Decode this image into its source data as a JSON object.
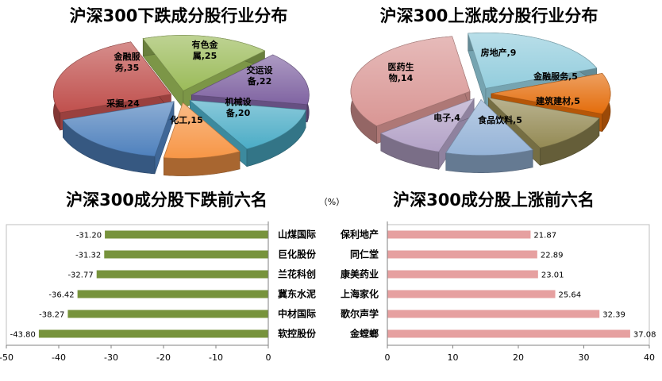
{
  "chart_data": [
    {
      "type": "pie",
      "title": "沪深300下跌成分股行业分布",
      "slices": [
        {
          "label": "有色金属",
          "value": 25,
          "color": "#9BBB59"
        },
        {
          "label": "交运设备",
          "value": 22,
          "color": "#8064A2"
        },
        {
          "label": "机械设备",
          "value": 20,
          "color": "#4BACC6"
        },
        {
          "label": "化工",
          "value": 15,
          "color": "#F79646"
        },
        {
          "label": "采掘",
          "value": 24,
          "color": "#4F81BD"
        },
        {
          "label": "金融服务",
          "value": 35,
          "color": "#C0504D"
        }
      ]
    },
    {
      "type": "pie",
      "title": "沪深300上涨成分股行业分布",
      "slices": [
        {
          "label": "房地产",
          "value": 9,
          "color": "#93CDDD"
        },
        {
          "label": "金融服务",
          "value": 5,
          "color": "#E46C0A"
        },
        {
          "label": "建筑建材",
          "value": 5,
          "color": "#948A54"
        },
        {
          "label": "食品饮料",
          "value": 5,
          "color": "#95B3D7"
        },
        {
          "label": "电子",
          "value": 4,
          "color": "#B3A2C7"
        },
        {
          "label": "医药生物",
          "value": 14,
          "color": "#D99694"
        }
      ]
    },
    {
      "type": "bar",
      "title": "沪深300成分股下跌前六名",
      "unit": "（%）",
      "categories": [
        "山煤国际",
        "巨化股份",
        "兰花科创",
        "冀东水泥",
        "中材国际",
        "软控股份"
      ],
      "values": [
        -31.2,
        -31.32,
        -32.77,
        -36.42,
        -38.27,
        -43.8
      ],
      "value_labels": [
        "-31.20",
        "-31.32",
        "-32.77",
        "-36.42",
        "-38.27",
        "-43.80"
      ],
      "color": "#77933C",
      "xlim": [
        -50,
        0
      ],
      "ticks": [
        -50,
        -40,
        -30,
        -20,
        -10,
        0
      ]
    },
    {
      "type": "bar",
      "title": "沪深300成分股上涨前六名",
      "categories": [
        "保利地产",
        "同仁堂",
        "康美药业",
        "上海家化",
        "歌尔声学",
        "金螳螂"
      ],
      "values": [
        21.87,
        22.89,
        23.01,
        25.64,
        32.39,
        37.08
      ],
      "value_labels": [
        "21.87",
        "22.89",
        "23.01",
        "25.64",
        "32.39",
        "37.08"
      ],
      "color": "#E6A0A0",
      "xlim": [
        0,
        40
      ],
      "ticks": [
        0,
        10,
        20,
        30,
        40
      ]
    }
  ]
}
